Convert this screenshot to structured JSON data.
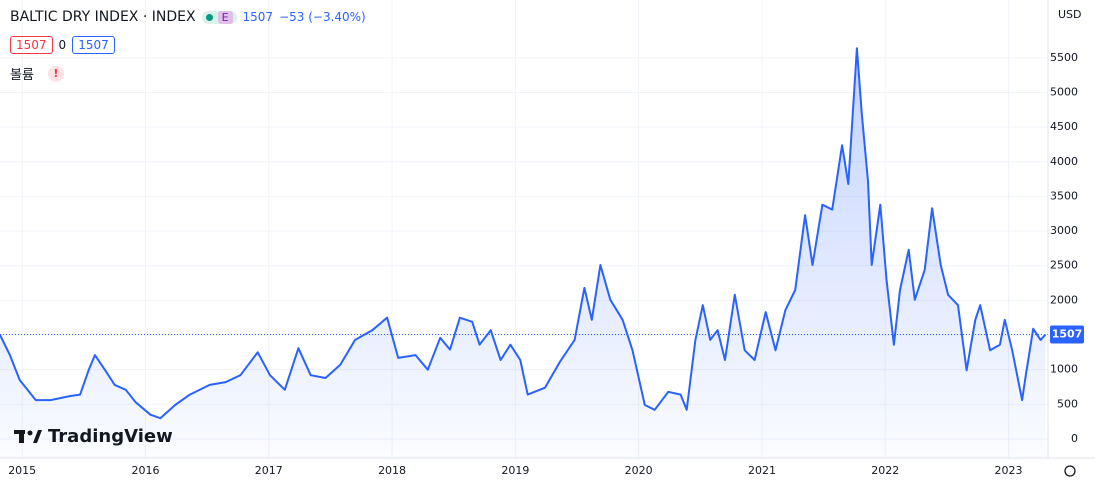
{
  "header": {
    "symbol": "BALTIC DRY INDEX · INDEX",
    "badge": "E",
    "last": "1507",
    "change": "−53 (−3.40%)",
    "values": [
      "1507",
      "0",
      "1507"
    ],
    "volume": "볼륨",
    "alert": "!",
    "currency": "USD",
    "logo": "TradingView"
  },
  "chart_data": {
    "type": "area",
    "color": "#2962ff",
    "grid": true,
    "last_value": 1507,
    "xlim": [
      2014.82,
      2023.32
    ],
    "xticks": [
      2015,
      2016,
      2017,
      2018,
      2019,
      2020,
      2021,
      2022,
      2023
    ],
    "ylim": [
      -275,
      6335
    ],
    "yticks": [
      0,
      500,
      1000,
      1500,
      2000,
      2500,
      3000,
      3500,
      4000,
      4500,
      5000,
      5500
    ],
    "x": [
      2014.82,
      2014.9,
      2014.98,
      2015.11,
      2015.23,
      2015.39,
      2015.47,
      2015.54,
      2015.59,
      2015.67,
      2015.75,
      2015.84,
      2015.92,
      2016.04,
      2016.12,
      2016.24,
      2016.36,
      2016.52,
      2016.65,
      2016.77,
      2016.91,
      2017.01,
      2017.13,
      2017.24,
      2017.34,
      2017.46,
      2017.58,
      2017.7,
      2017.84,
      2017.96,
      2018.05,
      2018.19,
      2018.29,
      2018.39,
      2018.47,
      2018.55,
      2018.65,
      2018.71,
      2018.8,
      2018.88,
      2018.96,
      2019.04,
      2019.1,
      2019.24,
      2019.36,
      2019.48,
      2019.56,
      2019.62,
      2019.69,
      2019.77,
      2019.87,
      2019.95,
      2020.05,
      2020.13,
      2020.24,
      2020.34,
      2020.39,
      2020.46,
      2020.52,
      2020.58,
      2020.64,
      2020.7,
      2020.78,
      2020.86,
      2020.94,
      2021.03,
      2021.11,
      2021.19,
      2021.27,
      2021.35,
      2021.41,
      2021.49,
      2021.57,
      2021.65,
      2021.7,
      2021.77,
      2021.81,
      2021.86,
      2021.89,
      2021.96,
      2022.01,
      2022.07,
      2022.12,
      2022.19,
      2022.24,
      2022.32,
      2022.38,
      2022.45,
      2022.51,
      2022.59,
      2022.66,
      2022.73,
      2022.77,
      2022.85,
      2022.93,
      2022.97,
      2023.03,
      2023.11,
      2023.14,
      2023.2,
      2023.26,
      2023.3
    ],
    "values": [
      1500,
      1210,
      850,
      560,
      560,
      620,
      640,
      1000,
      1210,
      1000,
      780,
      710,
      530,
      350,
      300,
      490,
      640,
      780,
      820,
      920,
      1250,
      920,
      710,
      1310,
      920,
      880,
      1070,
      1430,
      1570,
      1750,
      1170,
      1210,
      1000,
      1460,
      1290,
      1750,
      1690,
      1360,
      1570,
      1140,
      1360,
      1140,
      640,
      740,
      1110,
      1430,
      2180,
      1720,
      2510,
      2010,
      1720,
      1280,
      490,
      420,
      680,
      640,
      420,
      1430,
      1930,
      1430,
      1570,
      1140,
      2080,
      1280,
      1140,
      1830,
      1280,
      1860,
      2150,
      3230,
      2510,
      3380,
      3310,
      4240,
      3680,
      5640,
      4690,
      3720,
      2510,
      3380,
      2300,
      1360,
      2150,
      2730,
      2010,
      2440,
      3330,
      2510,
      2080,
      1930,
      990,
      1720,
      1930,
      1280,
      1360,
      1720,
      1280,
      560,
      920,
      1590,
      1430,
      1507
    ]
  }
}
